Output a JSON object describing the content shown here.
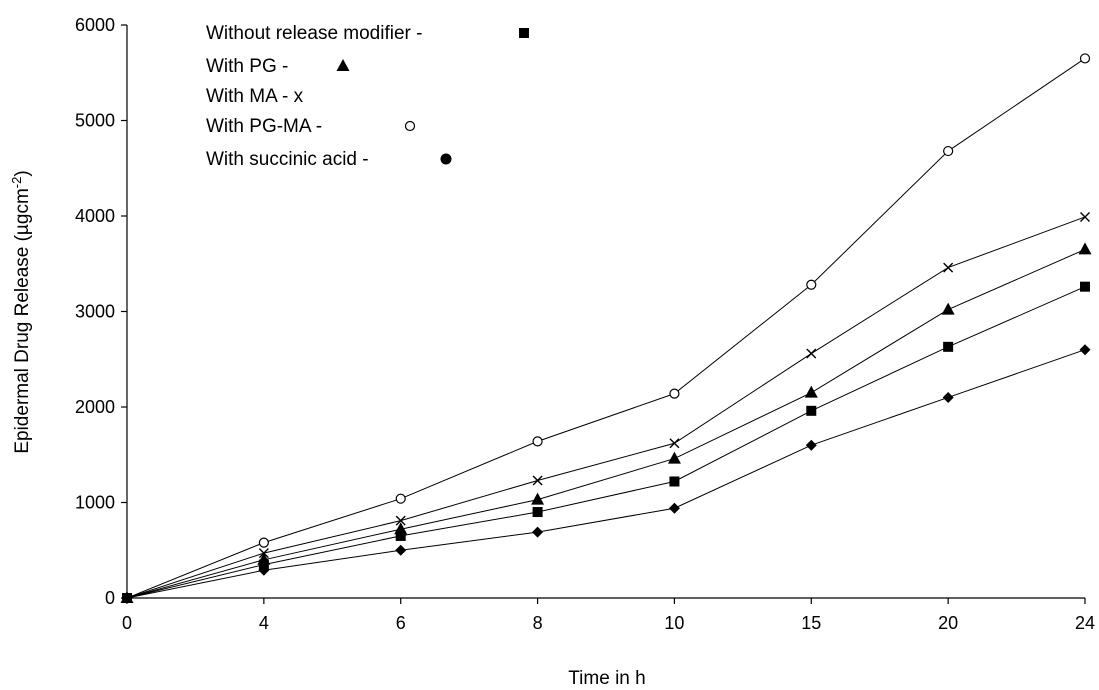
{
  "chart_data": {
    "type": "line",
    "categories": [
      "0",
      "4",
      "6",
      "8",
      "10",
      "15",
      "20",
      "24"
    ],
    "xlabel": "Time in h",
    "ylabel": "Epidermal Drug Release (µgcm",
    "ylabel_sup": "-2",
    "ylabel_end": ")",
    "ylim": [
      0,
      6000
    ],
    "yticks": [
      "0",
      "1000",
      "2000",
      "3000",
      "4000",
      "5000",
      "6000"
    ],
    "grid": false,
    "legend_position": "top-left",
    "series": [
      {
        "name": "Without release modifier -",
        "marker": "square",
        "values": [
          0,
          350,
          650,
          900,
          1220,
          1960,
          2630,
          3260
        ]
      },
      {
        "name": "With PG -",
        "marker": "triangle",
        "values": [
          0,
          400,
          720,
          1030,
          1460,
          2150,
          3020,
          3650
        ]
      },
      {
        "name": "With MA - x",
        "marker": "x",
        "values": [
          0,
          470,
          810,
          1230,
          1620,
          2560,
          3460,
          3990
        ]
      },
      {
        "name": "With PG-MA -",
        "marker": "circle-open",
        "values": [
          0,
          580,
          1040,
          1640,
          2140,
          3280,
          4680,
          5650
        ]
      },
      {
        "name": "With succinic acid -",
        "marker": "diamond",
        "values": [
          0,
          290,
          500,
          690,
          940,
          1600,
          2100,
          2600
        ]
      }
    ]
  }
}
